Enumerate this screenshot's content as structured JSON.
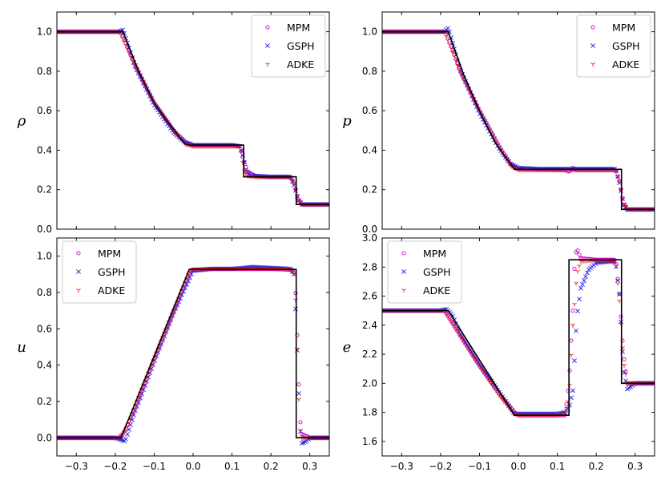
{
  "chart_data": [
    {
      "type": "line",
      "panel": "top-left",
      "ylabel": "ρ",
      "xlim": [
        -0.35,
        0.35
      ],
      "ylim": [
        0.0,
        1.1
      ],
      "xticks": [
        -0.3,
        -0.2,
        -0.1,
        0.0,
        0.1,
        0.2,
        0.3
      ],
      "xtick_labels": [
        "−0.3",
        "−0.2",
        "−0.1",
        "0.0",
        "0.1",
        "0.2",
        "0.3"
      ],
      "show_xtick_labels": false,
      "yticks": [
        0.0,
        0.2,
        0.4,
        0.6,
        0.8,
        1.0
      ],
      "ytick_labels": [
        "0.0",
        "0.2",
        "0.4",
        "0.6",
        "0.8",
        "1.0"
      ],
      "legend": {
        "placement": "top-right",
        "entries": [
          "MPM",
          "GSPH",
          "ADKE"
        ]
      },
      "exact": {
        "x": [
          -0.35,
          -0.18,
          -0.14,
          -0.1,
          -0.06,
          -0.02,
          -0.01,
          0.13,
          0.13,
          0.265,
          0.265,
          0.35
        ],
        "y": [
          1.0,
          1.0,
          0.8,
          0.64,
          0.53,
          0.43,
          0.426,
          0.426,
          0.265,
          0.265,
          0.125,
          0.125
        ]
      },
      "series": [
        {
          "name": "MPM",
          "x": [
            -0.35,
            -0.185,
            -0.15,
            -0.1,
            -0.05,
            -0.02,
            0.0,
            0.05,
            0.1,
            0.12,
            0.13,
            0.14,
            0.16,
            0.2,
            0.25,
            0.26,
            0.27,
            0.28,
            0.3,
            0.35
          ],
          "y": [
            1.0,
            1.0,
            0.83,
            0.64,
            0.5,
            0.44,
            0.425,
            0.425,
            0.425,
            0.42,
            0.35,
            0.29,
            0.27,
            0.265,
            0.265,
            0.23,
            0.15,
            0.125,
            0.125,
            0.125
          ]
        },
        {
          "name": "GSPH",
          "x": [
            -0.35,
            -0.19,
            -0.18,
            -0.15,
            -0.1,
            -0.05,
            -0.02,
            0.0,
            0.05,
            0.1,
            0.12,
            0.13,
            0.135,
            0.15,
            0.2,
            0.25,
            0.26,
            0.27,
            0.28,
            0.3,
            0.35
          ],
          "y": [
            1.0,
            1.0,
            1.01,
            0.83,
            0.63,
            0.49,
            0.44,
            0.425,
            0.425,
            0.425,
            0.42,
            0.36,
            0.3,
            0.27,
            0.265,
            0.265,
            0.22,
            0.15,
            0.125,
            0.125,
            0.125
          ]
        },
        {
          "name": "ADKE",
          "x": [
            -0.35,
            -0.19,
            -0.15,
            -0.1,
            -0.05,
            -0.02,
            0.0,
            0.05,
            0.1,
            0.12,
            0.125,
            0.13,
            0.14,
            0.16,
            0.2,
            0.25,
            0.26,
            0.27,
            0.28,
            0.3,
            0.35
          ],
          "y": [
            1.0,
            1.0,
            0.84,
            0.64,
            0.5,
            0.43,
            0.42,
            0.42,
            0.42,
            0.42,
            0.38,
            0.3,
            0.27,
            0.265,
            0.265,
            0.265,
            0.23,
            0.15,
            0.125,
            0.125,
            0.125
          ]
        }
      ]
    },
    {
      "type": "line",
      "panel": "top-right",
      "ylabel": "p",
      "xlim": [
        -0.35,
        0.35
      ],
      "ylim": [
        0.0,
        1.1
      ],
      "xticks": [
        -0.3,
        -0.2,
        -0.1,
        0.0,
        0.1,
        0.2,
        0.3
      ],
      "xtick_labels": [
        "−0.3",
        "−0.2",
        "−0.1",
        "0.0",
        "0.1",
        "0.2",
        "0.3"
      ],
      "show_xtick_labels": false,
      "yticks": [
        0.0,
        0.2,
        0.4,
        0.6,
        0.8,
        1.0
      ],
      "ytick_labels": [
        "0.0",
        "0.2",
        "0.4",
        "0.6",
        "0.8",
        "1.0"
      ],
      "legend": {
        "placement": "top-right",
        "entries": [
          "MPM",
          "GSPH",
          "ADKE"
        ]
      },
      "exact": {
        "x": [
          -0.35,
          -0.18,
          -0.14,
          -0.1,
          -0.06,
          -0.02,
          -0.01,
          0.265,
          0.265,
          0.35
        ],
        "y": [
          1.0,
          1.0,
          0.78,
          0.6,
          0.44,
          0.33,
          0.303,
          0.303,
          0.1,
          0.1
        ]
      },
      "series": [
        {
          "name": "MPM",
          "x": [
            -0.35,
            -0.185,
            -0.15,
            -0.1,
            -0.05,
            -0.02,
            0.0,
            0.12,
            0.13,
            0.14,
            0.15,
            0.16,
            0.2,
            0.25,
            0.26,
            0.27,
            0.28,
            0.3,
            0.35
          ],
          "y": [
            1.0,
            1.0,
            0.8,
            0.6,
            0.42,
            0.33,
            0.305,
            0.3,
            0.29,
            0.31,
            0.3,
            0.3,
            0.3,
            0.3,
            0.24,
            0.13,
            0.1,
            0.1,
            0.1
          ]
        },
        {
          "name": "GSPH",
          "x": [
            -0.35,
            -0.19,
            -0.18,
            -0.15,
            -0.1,
            -0.05,
            -0.02,
            0.0,
            0.05,
            0.1,
            0.15,
            0.2,
            0.25,
            0.26,
            0.27,
            0.28,
            0.3,
            0.35
          ],
          "y": [
            1.0,
            1.0,
            1.02,
            0.81,
            0.59,
            0.41,
            0.33,
            0.31,
            0.305,
            0.305,
            0.305,
            0.305,
            0.305,
            0.23,
            0.13,
            0.1,
            0.1,
            0.1
          ]
        },
        {
          "name": "ADKE",
          "x": [
            -0.35,
            -0.19,
            -0.15,
            -0.1,
            -0.05,
            -0.02,
            0.0,
            0.05,
            0.1,
            0.15,
            0.2,
            0.25,
            0.26,
            0.27,
            0.28,
            0.3,
            0.35
          ],
          "y": [
            1.0,
            1.0,
            0.8,
            0.6,
            0.42,
            0.32,
            0.3,
            0.3,
            0.3,
            0.3,
            0.3,
            0.3,
            0.24,
            0.13,
            0.1,
            0.1,
            0.1
          ]
        }
      ]
    },
    {
      "type": "line",
      "panel": "bottom-left",
      "ylabel": "u",
      "xlim": [
        -0.35,
        0.35
      ],
      "ylim": [
        -0.1,
        1.1
      ],
      "xticks": [
        -0.3,
        -0.2,
        -0.1,
        0.0,
        0.1,
        0.2,
        0.3
      ],
      "xtick_labels": [
        "−0.3",
        "−0.2",
        "−0.1",
        "0.0",
        "0.1",
        "0.2",
        "0.3"
      ],
      "show_xtick_labels": true,
      "yticks": [
        0.0,
        0.2,
        0.4,
        0.6,
        0.8,
        1.0
      ],
      "ytick_labels": [
        "0.0",
        "0.2",
        "0.4",
        "0.6",
        "0.8",
        "1.0"
      ],
      "legend": {
        "placement": "top-left",
        "entries": [
          "MPM",
          "GSPH",
          "ADKE"
        ]
      },
      "exact": {
        "x": [
          -0.35,
          -0.185,
          -0.01,
          0.265,
          0.265,
          0.35
        ],
        "y": [
          0.0,
          0.0,
          0.927,
          0.927,
          0.0,
          0.0
        ]
      },
      "series": [
        {
          "name": "MPM",
          "x": [
            -0.35,
            -0.19,
            -0.18,
            -0.15,
            -0.1,
            -0.05,
            -0.01,
            0.0,
            0.05,
            0.1,
            0.15,
            0.2,
            0.25,
            0.26,
            0.265,
            0.27,
            0.275,
            0.28,
            0.3,
            0.35
          ],
          "y": [
            0.0,
            0.0,
            0.02,
            0.16,
            0.43,
            0.69,
            0.9,
            0.925,
            0.93,
            0.93,
            0.93,
            0.93,
            0.925,
            0.91,
            0.75,
            0.4,
            0.1,
            0.02,
            0.0,
            0.0
          ]
        },
        {
          "name": "GSPH",
          "x": [
            -0.35,
            -0.2,
            -0.185,
            -0.175,
            -0.15,
            -0.1,
            -0.05,
            0.0,
            0.05,
            0.1,
            0.13,
            0.15,
            0.2,
            0.25,
            0.26,
            0.265,
            0.27,
            0.275,
            0.28,
            0.29,
            0.3,
            0.35
          ],
          "y": [
            0.0,
            0.0,
            -0.01,
            -0.02,
            0.14,
            0.42,
            0.69,
            0.92,
            0.93,
            0.93,
            0.935,
            0.94,
            0.935,
            0.93,
            0.9,
            0.63,
            0.35,
            0.05,
            -0.03,
            -0.02,
            0.0,
            0.0
          ]
        },
        {
          "name": "ADKE",
          "x": [
            -0.35,
            -0.19,
            -0.17,
            -0.15,
            -0.1,
            -0.05,
            -0.01,
            0.0,
            0.05,
            0.1,
            0.15,
            0.2,
            0.25,
            0.26,
            0.265,
            0.27,
            0.275,
            0.28,
            0.3,
            0.35
          ],
          "y": [
            0.0,
            0.0,
            0.05,
            0.17,
            0.44,
            0.7,
            0.91,
            0.93,
            0.93,
            0.93,
            0.93,
            0.93,
            0.93,
            0.9,
            0.7,
            0.3,
            0.05,
            0.0,
            0.0,
            0.0
          ]
        }
      ]
    },
    {
      "type": "line",
      "panel": "bottom-right",
      "ylabel": "e",
      "xlim": [
        -0.35,
        0.35
      ],
      "ylim": [
        1.5,
        3.0
      ],
      "xticks": [
        -0.3,
        -0.2,
        -0.1,
        0.0,
        0.1,
        0.2,
        0.3
      ],
      "xtick_labels": [
        "−0.3",
        "−0.2",
        "−0.1",
        "0.0",
        "0.1",
        "0.2",
        "0.3"
      ],
      "show_xtick_labels": true,
      "yticks": [
        1.6,
        1.8,
        2.0,
        2.2,
        2.4,
        2.6,
        2.8,
        3.0
      ],
      "ytick_labels": [
        "1.6",
        "1.8",
        "2.0",
        "2.2",
        "2.4",
        "2.6",
        "2.8",
        "3.0"
      ],
      "legend": {
        "placement": "top-left",
        "entries": [
          "MPM",
          "GSPH",
          "ADKE"
        ]
      },
      "exact": {
        "x": [
          -0.35,
          -0.18,
          -0.01,
          0.13,
          0.13,
          0.265,
          0.265,
          0.35
        ],
        "y": [
          2.5,
          2.5,
          1.78,
          1.78,
          2.85,
          2.85,
          2.0,
          2.0
        ]
      },
      "series": [
        {
          "name": "MPM",
          "x": [
            -0.35,
            -0.19,
            -0.15,
            -0.1,
            -0.05,
            -0.01,
            0.0,
            0.05,
            0.1,
            0.12,
            0.13,
            0.14,
            0.145,
            0.15,
            0.16,
            0.2,
            0.25,
            0.26,
            0.27,
            0.28,
            0.3,
            0.35
          ],
          "y": [
            2.5,
            2.5,
            2.33,
            2.12,
            1.93,
            1.8,
            1.78,
            1.78,
            1.78,
            1.78,
            2.0,
            2.5,
            2.85,
            2.93,
            2.86,
            2.85,
            2.85,
            2.6,
            2.2,
            2.0,
            2.0,
            2.0
          ]
        },
        {
          "name": "GSPH",
          "x": [
            -0.35,
            -0.2,
            -0.185,
            -0.17,
            -0.15,
            -0.1,
            -0.05,
            -0.01,
            0.0,
            0.05,
            0.1,
            0.12,
            0.13,
            0.14,
            0.15,
            0.16,
            0.18,
            0.2,
            0.24,
            0.25,
            0.26,
            0.27,
            0.28,
            0.29,
            0.3,
            0.35
          ],
          "y": [
            2.5,
            2.5,
            2.51,
            2.47,
            2.34,
            2.13,
            1.94,
            1.79,
            1.79,
            1.79,
            1.79,
            1.8,
            1.83,
            1.95,
            2.45,
            2.65,
            2.78,
            2.83,
            2.84,
            2.83,
            2.6,
            2.1,
            1.96,
            1.98,
            2.0,
            2.0
          ]
        },
        {
          "name": "ADKE",
          "x": [
            -0.35,
            -0.19,
            -0.15,
            -0.1,
            -0.05,
            -0.01,
            0.0,
            0.05,
            0.1,
            0.12,
            0.13,
            0.14,
            0.15,
            0.16,
            0.2,
            0.25,
            0.26,
            0.27,
            0.28,
            0.3,
            0.35
          ],
          "y": [
            2.5,
            2.5,
            2.33,
            2.12,
            1.92,
            1.79,
            1.78,
            1.78,
            1.78,
            1.79,
            1.9,
            2.4,
            2.75,
            2.84,
            2.85,
            2.84,
            2.55,
            2.15,
            2.0,
            2.0,
            2.0
          ]
        }
      ]
    }
  ],
  "styles": {
    "exact_color": "#000000",
    "MPM_color": "#cc00cc",
    "GSPH_color": "#1f1fe0",
    "ADKE_color": "#ee1111"
  }
}
